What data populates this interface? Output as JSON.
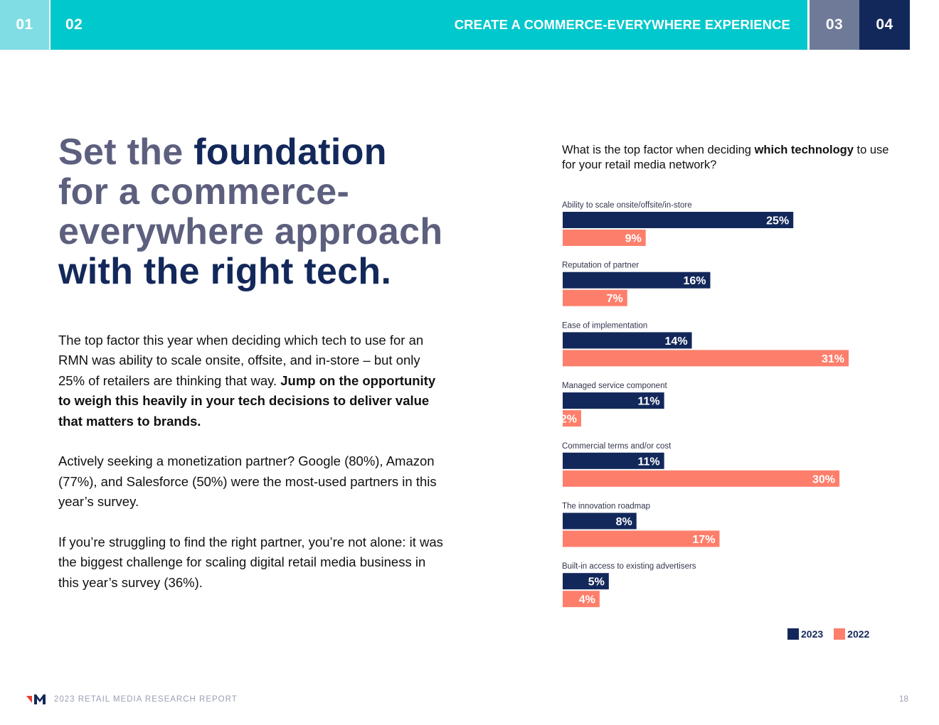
{
  "nav": {
    "tabs": [
      "01",
      "02",
      "03",
      "04"
    ],
    "section_title": "CREATE A COMMERCE-EVERYWHERE  EXPERIENCE"
  },
  "headline": {
    "part1": "Set the ",
    "part2": "foundation",
    "part3": "for a commerce-everywhere approach",
    "part4": "with the right tech."
  },
  "body": {
    "p1_text": "The top factor this year when deciding which tech to use for an RMN was ability to scale onsite, offsite, and in-store – but only 25% of retailers are thinking that way. ",
    "p1_bold": "Jump on the opportunity to weigh this heavily in your tech decisions to deliver value that matters to brands.",
    "p2": "Actively seeking a monetization partner? Google (80%), Amazon (77%), and Salesforce (50%) were the most-used partners in this year’s survey.",
    "p3": "If you’re struggling to find the right partner, you’re not alone: it was the biggest challenge for scaling digital retail media business in this year’s survey (36%)."
  },
  "question": {
    "part1": "What is the top factor when deciding ",
    "bold": "which technology",
    "part2": " to use for your retail media network?"
  },
  "chart_data": {
    "type": "bar",
    "orientation": "horizontal",
    "categories": [
      "Ability to scale onsite/offsite/in-store",
      "Reputation of partner",
      "Ease of implementation",
      "Managed service component",
      "Commercial terms and/or cost",
      "The innovation roadmap",
      "Built-in access to existing advertisers"
    ],
    "series": [
      {
        "name": "2023",
        "color": "#13285a",
        "values": [
          25,
          16,
          14,
          11,
          11,
          8,
          5
        ]
      },
      {
        "name": "2022",
        "color": "#fd7f6b",
        "values": [
          9,
          7,
          31,
          2,
          30,
          17,
          4
        ]
      }
    ],
    "value_suffix": "%",
    "xlim": [
      0,
      36
    ],
    "legend_position": "bottom-right",
    "grid": false
  },
  "footer": {
    "report_title": "2023 RETAIL MEDIA RESEARCH REPORT",
    "page_number": "18"
  }
}
